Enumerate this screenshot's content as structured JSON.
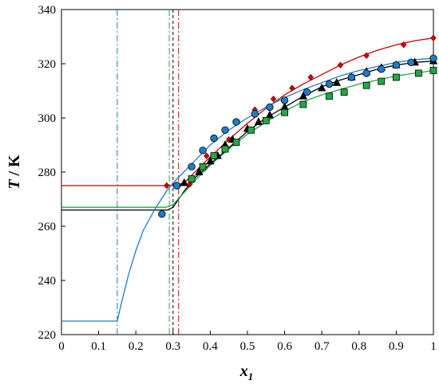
{
  "chart_data": {
    "type": "scatter",
    "xlabel": "x",
    "xlabel_sub": "1",
    "ylabel": "T / K",
    "ylabel_var": "T",
    "ylabel_unit": " / K",
    "xlim": [
      0,
      1
    ],
    "ylim": [
      220,
      340
    ],
    "xticks": [
      0,
      0.1,
      0.2,
      0.3,
      0.4,
      0.5,
      0.6,
      0.7,
      0.8,
      0.9,
      1
    ],
    "yticks": [
      220,
      240,
      260,
      280,
      300,
      320,
      340
    ],
    "series": [
      {
        "color": "#cc0000",
        "marker": "diamond",
        "markers": [
          [
            0.283,
            275
          ],
          [
            0.315,
            275
          ],
          [
            0.345,
            275.5
          ],
          [
            0.39,
            286
          ],
          [
            0.45,
            292
          ],
          [
            0.52,
            303
          ],
          [
            0.57,
            307
          ],
          [
            0.62,
            311
          ],
          [
            0.67,
            315
          ],
          [
            0.75,
            319.5
          ],
          [
            0.82,
            323
          ],
          [
            0.92,
            327
          ],
          [
            1.0,
            329.5
          ]
        ],
        "curve": [
          [
            0,
            275
          ],
          [
            0.3,
            275
          ],
          [
            0.33,
            276
          ],
          [
            0.38,
            283
          ],
          [
            0.45,
            292
          ],
          [
            0.5,
            298
          ],
          [
            0.55,
            303.5
          ],
          [
            0.6,
            308.5
          ],
          [
            0.65,
            312.5
          ],
          [
            0.7,
            316
          ],
          [
            0.75,
            319.5
          ],
          [
            0.8,
            322.5
          ],
          [
            0.85,
            325
          ],
          [
            0.9,
            327
          ],
          [
            0.95,
            328.5
          ],
          [
            1.0,
            329.5
          ]
        ],
        "eutectic_x": 0.315,
        "eutectic_style": "dashdot"
      },
      {
        "color": "#000000",
        "marker": "triangle",
        "markers": [
          [
            0.33,
            276
          ],
          [
            0.37,
            280
          ],
          [
            0.4,
            284
          ],
          [
            0.42,
            286
          ],
          [
            0.44,
            290
          ],
          [
            0.46,
            292
          ],
          [
            0.5,
            296
          ],
          [
            0.53,
            298.5
          ],
          [
            0.56,
            301
          ],
          [
            0.6,
            304
          ],
          [
            0.65,
            308
          ],
          [
            0.7,
            311
          ],
          [
            0.74,
            313
          ],
          [
            0.78,
            315
          ],
          [
            0.82,
            317
          ],
          [
            0.86,
            318.5
          ],
          [
            0.9,
            319.5
          ],
          [
            0.95,
            320.5
          ],
          [
            1.0,
            321
          ]
        ],
        "curve": [
          [
            0,
            266
          ],
          [
            0.285,
            266
          ],
          [
            0.3,
            267
          ],
          [
            0.33,
            273
          ],
          [
            0.36,
            278
          ],
          [
            0.4,
            283
          ],
          [
            0.45,
            289
          ],
          [
            0.5,
            295
          ],
          [
            0.55,
            300
          ],
          [
            0.6,
            304
          ],
          [
            0.65,
            308
          ],
          [
            0.7,
            311.5
          ],
          [
            0.75,
            314
          ],
          [
            0.8,
            316
          ],
          [
            0.85,
            318
          ],
          [
            0.9,
            319.5
          ],
          [
            0.95,
            320.5
          ],
          [
            1.0,
            321
          ]
        ],
        "eutectic_x": 0.3,
        "eutectic_style": "dashed"
      },
      {
        "color": "#1f7bc6",
        "marker": "circle",
        "markers": [
          [
            0.27,
            264.5
          ],
          [
            0.31,
            275
          ],
          [
            0.35,
            282
          ],
          [
            0.38,
            288
          ],
          [
            0.41,
            292.5
          ],
          [
            0.44,
            295.5
          ],
          [
            0.47,
            298.5
          ],
          [
            0.52,
            301.5
          ],
          [
            0.56,
            304
          ],
          [
            0.6,
            306.5
          ],
          [
            0.66,
            309.5
          ],
          [
            0.72,
            312.5
          ],
          [
            0.78,
            315
          ],
          [
            0.82,
            316.5
          ],
          [
            0.86,
            318
          ],
          [
            0.9,
            319.5
          ],
          [
            0.94,
            320.5
          ],
          [
            1.0,
            322
          ]
        ],
        "curve": [
          [
            0,
            225
          ],
          [
            0.15,
            225
          ],
          [
            0.16,
            231
          ],
          [
            0.18,
            242
          ],
          [
            0.2,
            251
          ],
          [
            0.22,
            258.5
          ],
          [
            0.25,
            266
          ],
          [
            0.28,
            272.5
          ],
          [
            0.3,
            276
          ],
          [
            0.35,
            283
          ],
          [
            0.4,
            290
          ],
          [
            0.45,
            295.5
          ],
          [
            0.5,
            300
          ],
          [
            0.55,
            304
          ],
          [
            0.6,
            307.5
          ],
          [
            0.65,
            310.5
          ],
          [
            0.7,
            313
          ],
          [
            0.75,
            315.5
          ],
          [
            0.8,
            317.5
          ],
          [
            0.85,
            319
          ],
          [
            0.9,
            320.5
          ],
          [
            0.95,
            321.5
          ],
          [
            1.0,
            322
          ]
        ],
        "eutectic_x": 0.15,
        "eutectic_style": "dashdot"
      },
      {
        "color": "#22a845",
        "marker": "square",
        "markers": [
          [
            0.35,
            277.5
          ],
          [
            0.38,
            282
          ],
          [
            0.41,
            286
          ],
          [
            0.44,
            288.5
          ],
          [
            0.47,
            291
          ],
          [
            0.51,
            295.5
          ],
          [
            0.55,
            299
          ],
          [
            0.6,
            302
          ],
          [
            0.65,
            305
          ],
          [
            0.72,
            308
          ],
          [
            0.76,
            309.5
          ],
          [
            0.82,
            312
          ],
          [
            0.86,
            313.5
          ],
          [
            0.9,
            315
          ],
          [
            0.96,
            316.5
          ],
          [
            1.0,
            317.5
          ]
        ],
        "curve": [
          [
            0,
            267
          ],
          [
            0.28,
            267
          ],
          [
            0.3,
            268
          ],
          [
            0.33,
            272.5
          ],
          [
            0.36,
            277
          ],
          [
            0.4,
            282.5
          ],
          [
            0.45,
            288.5
          ],
          [
            0.5,
            294
          ],
          [
            0.55,
            298.5
          ],
          [
            0.6,
            302.5
          ],
          [
            0.65,
            306
          ],
          [
            0.7,
            308.5
          ],
          [
            0.75,
            310.5
          ],
          [
            0.8,
            312.5
          ],
          [
            0.85,
            314
          ],
          [
            0.9,
            315.5
          ],
          [
            0.95,
            316.5
          ],
          [
            1.0,
            317.5
          ]
        ],
        "eutectic_x": 0.29,
        "eutectic_style": "dashdot"
      }
    ]
  }
}
